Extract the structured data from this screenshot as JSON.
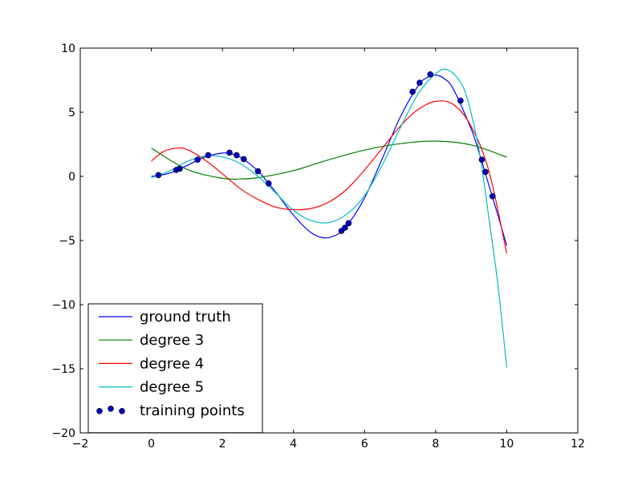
{
  "chart_data": {
    "type": "line",
    "title": "",
    "xlabel": "",
    "ylabel": "",
    "xlim": [
      -2,
      12
    ],
    "ylim": [
      -20,
      10
    ],
    "x_ticks": [
      -2,
      0,
      2,
      4,
      6,
      8,
      10,
      12
    ],
    "y_ticks": [
      -20,
      -15,
      -10,
      -5,
      0,
      5,
      10
    ],
    "x_tick_labels": [
      "−2",
      "0",
      "2",
      "4",
      "6",
      "8",
      "10",
      "12"
    ],
    "y_tick_labels": [
      "−20",
      "−15",
      "−10",
      "−5",
      "0",
      "5",
      "10"
    ],
    "grid": false,
    "legend_position": "lower-left",
    "series": [
      {
        "name": "ground truth",
        "type": "line",
        "color": "#0000ff",
        "x": [
          0,
          0.5,
          1,
          1.5,
          2,
          2.25,
          2.5,
          3,
          3.5,
          4,
          4.5,
          4.9,
          5.25,
          5.5,
          6,
          6.5,
          7,
          7.5,
          7.75,
          8,
          8.25,
          8.5,
          9,
          9.25,
          9.5,
          9.75,
          10
        ],
        "y": [
          0,
          0.24,
          0.84,
          1.5,
          1.82,
          1.75,
          1.5,
          0.42,
          -1.23,
          -3.03,
          -4.4,
          -4.8,
          -4.5,
          -3.88,
          -1.68,
          1.4,
          4.6,
          7.04,
          7.69,
          7.9,
          7.6,
          6.8,
          3.7,
          1.6,
          -0.71,
          -3.0,
          -5.4
        ]
      },
      {
        "name": "degree 3",
        "type": "line",
        "color": "#008000",
        "x": [
          0,
          1,
          2,
          2.5,
          3,
          4,
          5,
          6,
          7,
          8,
          9,
          10
        ],
        "y": [
          2.2,
          0.55,
          -0.15,
          -0.2,
          -0.1,
          0.45,
          1.3,
          2.05,
          2.55,
          2.75,
          2.45,
          1.5
        ]
      },
      {
        "name": "degree 4",
        "type": "line",
        "color": "#ff0000",
        "x": [
          0,
          0.35,
          0.7,
          1,
          1.5,
          2,
          2.5,
          3,
          3.5,
          4,
          4.5,
          5,
          5.5,
          6,
          6.5,
          7,
          7.5,
          8,
          8.5,
          9,
          9.5,
          10
        ],
        "y": [
          1.2,
          1.95,
          2.2,
          2.1,
          1.3,
          0.2,
          -0.95,
          -1.8,
          -2.4,
          -2.6,
          -2.5,
          -2.0,
          -1.0,
          0.5,
          2.2,
          3.9,
          5.2,
          5.85,
          5.6,
          3.9,
          0.4,
          -6.0
        ]
      },
      {
        "name": "degree 5",
        "type": "line",
        "color": "#00bfbf",
        "x": [
          0,
          0.5,
          1,
          1.5,
          2,
          2.5,
          3,
          3.5,
          4,
          4.5,
          5,
          5.5,
          6,
          6.5,
          7,
          7.5,
          8,
          8.35,
          8.75,
          9,
          9.25,
          9.5,
          9.75,
          10
        ],
        "y": [
          -0.1,
          0.4,
          1.15,
          1.58,
          1.52,
          1.0,
          0.0,
          -1.3,
          -2.65,
          -3.45,
          -3.6,
          -2.95,
          -1.5,
          0.9,
          3.75,
          6.4,
          8.0,
          8.3,
          7.1,
          4.9,
          1.6,
          -3.3,
          -8.4,
          -14.9
        ]
      },
      {
        "name": "training points",
        "type": "scatter",
        "color": "#0000bf",
        "x": [
          0.2,
          0.7,
          0.8,
          1.3,
          1.6,
          2.2,
          2.4,
          2.6,
          3.0,
          3.3,
          5.35,
          5.45,
          5.55,
          7.35,
          7.55,
          7.85,
          8.7,
          9.3,
          9.4,
          9.6
        ],
        "y": [
          0.1,
          0.5,
          0.6,
          1.3,
          1.65,
          1.85,
          1.65,
          1.35,
          0.4,
          -0.55,
          -4.25,
          -4.0,
          -3.65,
          6.6,
          7.3,
          7.95,
          5.9,
          1.3,
          0.35,
          -1.55
        ]
      }
    ]
  }
}
